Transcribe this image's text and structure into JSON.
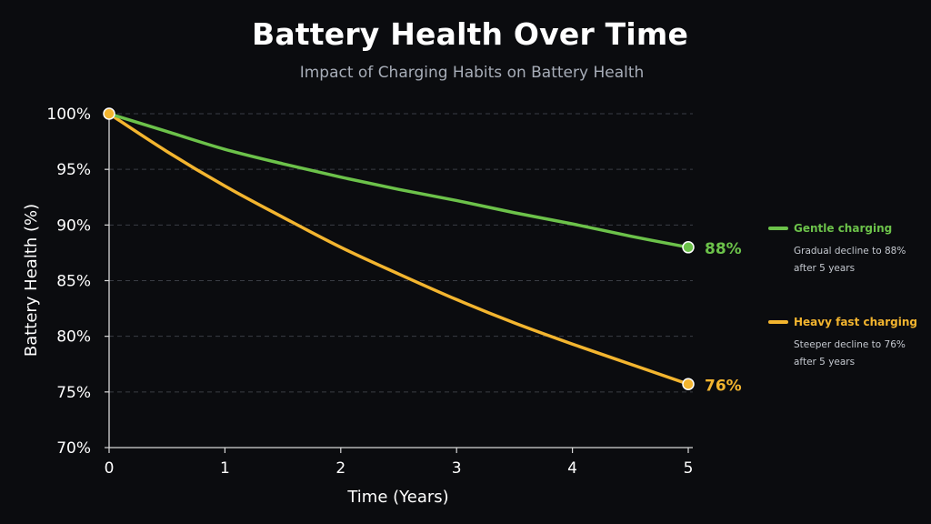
{
  "chart_data": {
    "type": "line",
    "title": "Battery Health Over Time",
    "subtitle": "Impact of Charging Habits on Battery Health",
    "xlabel": "Time (Years)",
    "ylabel": "Battery Health (%)",
    "xlim": [
      0,
      5
    ],
    "ylim": [
      70,
      100
    ],
    "x_ticks": [
      "0",
      "1",
      "2",
      "3",
      "4",
      "5"
    ],
    "y_ticks": [
      "70%",
      "75%",
      "80%",
      "85%",
      "90%",
      "95%",
      "100%"
    ],
    "grid": true,
    "legend_position": "right",
    "x": [
      0,
      0.5,
      1,
      1.5,
      2,
      2.5,
      3,
      3.5,
      4,
      4.5,
      5
    ],
    "series": [
      {
        "name": "Gentle charging",
        "color": "#6cc24a",
        "values": [
          100,
          98.4,
          96.8,
          95.5,
          94.3,
          93.2,
          92.2,
          91.1,
          90.1,
          89.0,
          88
        ],
        "end_label": "88%",
        "description": "Gradual decline to 88% after 5 years"
      },
      {
        "name": "Heavy fast charging",
        "color": "#f3b52f",
        "values": [
          100,
          96.6,
          93.5,
          90.7,
          88.0,
          85.6,
          83.3,
          81.2,
          79.3,
          77.5,
          75.7
        ],
        "end_label": "76%",
        "description": "Steeper decline to 76% after 5 years"
      }
    ]
  }
}
